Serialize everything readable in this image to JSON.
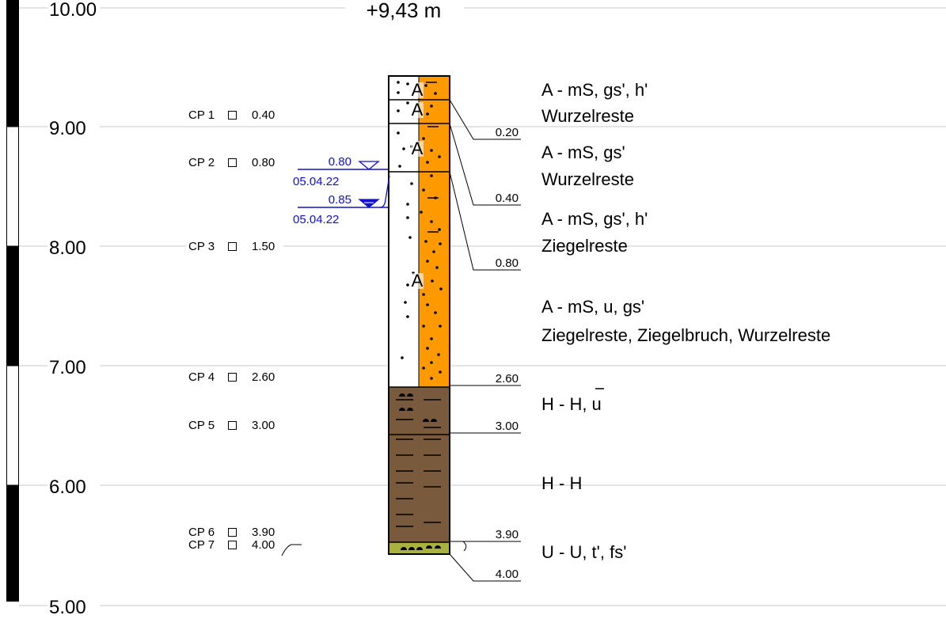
{
  "header": {
    "elevation": "+9,43 m"
  },
  "axis": {
    "ticks": [
      "10.00",
      "9.00",
      "8.00",
      "7.00",
      "6.00",
      "5.00"
    ]
  },
  "layers": [
    {
      "depth": "0.20",
      "symbol": "A",
      "description": [
        "A - mS, gs', h'",
        "Wurzelreste"
      ]
    },
    {
      "depth": "0.40",
      "symbol": "A",
      "description": [
        "A - mS, gs'",
        "Wurzelreste"
      ]
    },
    {
      "depth": "0.80",
      "symbol": "A",
      "description": [
        "A - mS, gs', h'",
        "Ziegelreste"
      ]
    },
    {
      "depth": "2.60",
      "symbol": "A",
      "description": [
        "A - mS, u, gs'",
        "Ziegelreste, Ziegelbruch, Wurzelreste"
      ]
    },
    {
      "depth": "3.00",
      "description": [
        "H - H, u"
      ]
    },
    {
      "depth": "3.90",
      "description": [
        "H - H"
      ]
    },
    {
      "depth": "4.00",
      "description": [
        "U - U, t', fs'"
      ]
    }
  ],
  "samples": [
    {
      "name": "CP 1",
      "depth": "0.40"
    },
    {
      "name": "CP 2",
      "depth": "0.80"
    },
    {
      "name": "CP 3",
      "depth": "1.50"
    },
    {
      "name": "CP 4",
      "depth": "2.60"
    },
    {
      "name": "CP 5",
      "depth": "3.00"
    },
    {
      "name": "CP 6",
      "depth": "3.90"
    },
    {
      "name": "CP 7",
      "depth": "4.00"
    }
  ],
  "water_levels": [
    {
      "depth": "0.80",
      "date": "05.04.22"
    },
    {
      "depth": "0.85",
      "date": "05.04.22"
    }
  ]
}
